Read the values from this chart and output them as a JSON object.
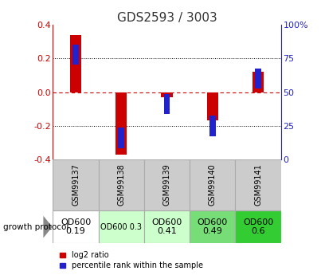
{
  "title": "GDS2593 / 3003",
  "samples": [
    "GSM99137",
    "GSM99138",
    "GSM99139",
    "GSM99140",
    "GSM99141"
  ],
  "log2_ratio": [
    0.34,
    -0.37,
    -0.03,
    -0.17,
    0.12
  ],
  "percentile_rank_raw": [
    78,
    16,
    41,
    25,
    60
  ],
  "ylim": [
    -0.4,
    0.4
  ],
  "yticks_left": [
    -0.4,
    -0.2,
    0.0,
    0.2,
    0.4
  ],
  "right_yticks": [
    0,
    25,
    50,
    75,
    100
  ],
  "right_yticklabels": [
    "0",
    "25",
    "50",
    "75",
    "100%"
  ],
  "bar_color_red": "#cc0000",
  "bar_color_blue": "#2222cc",
  "zero_line_color": "#cc0000",
  "protocol_labels": [
    "OD600\n0.19",
    "OD600 0.3",
    "OD600\n0.41",
    "OD600\n0.49",
    "OD600\n0.6"
  ],
  "protocol_colors": [
    "#ffffff",
    "#ccffcc",
    "#ccffcc",
    "#77dd77",
    "#33cc33"
  ],
  "protocol_fontsizes": [
    8,
    7,
    8,
    8,
    8
  ],
  "legend_red": "log2 ratio",
  "legend_blue": "percentile rank within the sample",
  "growth_protocol_label": "growth protocol",
  "bar_width": 0.25,
  "blue_bar_width": 0.12,
  "title_color": "#333333",
  "title_fontsize": 11,
  "sample_label_fontsize": 7,
  "label_bg_color": "#cccccc",
  "label_border_color": "#aaaaaa"
}
